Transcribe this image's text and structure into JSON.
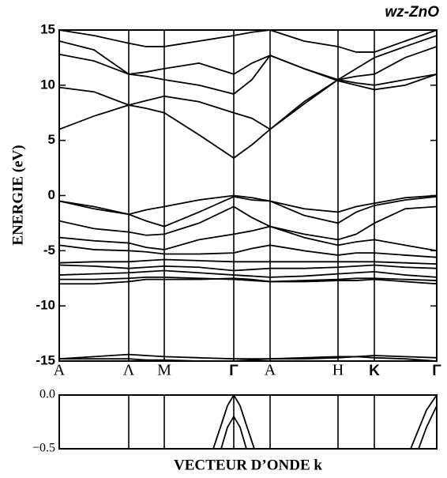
{
  "chart_data": [
    {
      "type": "line",
      "title": "wz-ZnO",
      "ylabel": "ENERGIE (eV)",
      "x": [
        0,
        0.44,
        0.88,
        1.1,
        1.33,
        1.77,
        2.21,
        2.44,
        2.67,
        3.1,
        3.53,
        3.76,
        3.99,
        4.38,
        4.78
      ],
      "xlim": [
        0,
        4.78
      ],
      "xticks": [
        {
          "value": 0,
          "label": "A"
        },
        {
          "value": 0.88,
          "label": "Λ"
        },
        {
          "value": 1.33,
          "label": "M"
        },
        {
          "value": 2.21,
          "label": "Γ"
        },
        {
          "value": 2.67,
          "label": "A"
        },
        {
          "value": 3.53,
          "label": "H"
        },
        {
          "value": 3.99,
          "label": "K"
        },
        {
          "value": 4.78,
          "label": "Γ"
        }
      ],
      "ylim": [
        -15,
        15
      ],
      "yticks": [
        -15,
        -10,
        -5,
        0,
        5,
        10,
        15
      ],
      "series": [
        {
          "color": "#000000",
          "values": [
            -0.5,
            -1.0,
            -1.7,
            -1.3,
            -1.0,
            -0.4,
            0,
            -0.2,
            -0.5,
            -1.2,
            -1.5,
            -1.0,
            -0.7,
            -0.2,
            0
          ]
        },
        {
          "color": "#000000",
          "values": [
            -0.5,
            -1.2,
            -1.7,
            -2.3,
            -2.8,
            -1.5,
            -0.1,
            -0.4,
            -0.5,
            -1.8,
            -2.5,
            -1.5,
            -0.9,
            -0.4,
            -0.1
          ]
        },
        {
          "color": "#000000",
          "values": [
            -2.3,
            -3.0,
            -3.3,
            -3.6,
            -3.5,
            -2.5,
            -1.0,
            -2.0,
            -2.8,
            -3.5,
            -4.0,
            -3.5,
            -2.5,
            -1.2,
            -1.0
          ]
        },
        {
          "color": "#000000",
          "values": [
            -3.8,
            -4.1,
            -4.3,
            -4.7,
            -4.9,
            -4.0,
            -3.5,
            -3.2,
            -2.8,
            -3.8,
            -4.5,
            -4.2,
            -4.0,
            -4.5,
            -5.0
          ]
        },
        {
          "color": "#000000",
          "values": [
            -4.5,
            -4.9,
            -5.0,
            -5.1,
            -5.3,
            -5.3,
            -5.2,
            -4.8,
            -4.5,
            -5.0,
            -5.4,
            -5.2,
            -5.2,
            -5.4,
            -5.6
          ]
        },
        {
          "color": "#000000",
          "values": [
            -6.1,
            -6.0,
            -6.0,
            -5.9,
            -5.8,
            -5.9,
            -6.0,
            -6.0,
            -6.0,
            -6.0,
            -6.0,
            -6.0,
            -6.0,
            -6.1,
            -6.2
          ]
        },
        {
          "color": "#000000",
          "values": [
            -6.3,
            -6.4,
            -6.6,
            -6.5,
            -6.4,
            -6.5,
            -6.8,
            -6.7,
            -6.6,
            -6.6,
            -6.5,
            -6.4,
            -6.3,
            -6.5,
            -6.6
          ]
        },
        {
          "color": "#000000",
          "values": [
            -7.2,
            -7.1,
            -7.0,
            -6.9,
            -6.8,
            -7.0,
            -7.2,
            -7.3,
            -7.4,
            -7.3,
            -7.1,
            -7.0,
            -6.9,
            -7.2,
            -7.4
          ]
        },
        {
          "color": "#000000",
          "values": [
            -7.6,
            -7.6,
            -7.5,
            -7.4,
            -7.4,
            -7.5,
            -7.6,
            -7.7,
            -7.8,
            -7.7,
            -7.6,
            -7.5,
            -7.5,
            -7.6,
            -7.7
          ]
        },
        {
          "color": "#000000",
          "values": [
            -8.0,
            -8.0,
            -7.8,
            -7.6,
            -7.6,
            -7.6,
            -7.5,
            -7.6,
            -7.8,
            -7.8,
            -7.7,
            -7.7,
            -7.6,
            -7.8,
            -8.0
          ]
        },
        {
          "color": "#000000",
          "values": [
            -14.8,
            -14.6,
            -14.4,
            -14.5,
            -14.6,
            -14.7,
            -14.8,
            -14.8,
            -14.8,
            -14.7,
            -14.6,
            -14.6,
            -14.5,
            -14.6,
            -14.7
          ]
        },
        {
          "color": "#000000",
          "values": [
            -14.8,
            -14.8,
            -14.8,
            -14.9,
            -14.9,
            -15.0,
            -15.0,
            -14.9,
            -14.8,
            -14.8,
            -14.7,
            -14.6,
            -14.7,
            -14.8,
            -15.0
          ]
        },
        {
          "color": "#000000",
          "values": [
            6.0,
            7.2,
            8.2,
            7.9,
            7.5,
            5.5,
            3.4,
            4.6,
            6.0,
            8.3,
            10.5,
            10.2,
            10.0,
            10.5,
            11.0
          ]
        },
        {
          "color": "#000000",
          "values": [
            9.8,
            9.4,
            8.2,
            8.6,
            9.0,
            8.5,
            7.5,
            7.0,
            6.0,
            8.5,
            10.5,
            10.8,
            11.0,
            12.5,
            13.5
          ]
        },
        {
          "color": "#000000",
          "values": [
            12.8,
            12.2,
            11.0,
            10.8,
            10.5,
            10.0,
            9.2,
            10.5,
            12.7,
            11.5,
            10.4,
            10.0,
            9.6,
            10.0,
            11.0
          ]
        },
        {
          "color": "#000000",
          "values": [
            14.0,
            13.2,
            11.0,
            11.2,
            11.5,
            12.0,
            11.0,
            12.0,
            12.7,
            11.5,
            10.5,
            11.5,
            12.5,
            13.5,
            14.5
          ]
        },
        {
          "color": "#000000",
          "values": [
            15.0,
            14.5,
            13.8,
            13.5,
            13.5,
            14.0,
            14.5,
            14.8,
            15.0,
            14.0,
            13.5,
            13.0,
            13.0,
            14.0,
            15.0
          ]
        }
      ]
    },
    {
      "type": "line",
      "xlabel": "VECTEUR D’ONDE k",
      "x": [
        1.95,
        2.05,
        2.13,
        2.21,
        2.29,
        2.37,
        2.47,
        4.45,
        4.55,
        4.65,
        4.78
      ],
      "xlim": [
        0,
        4.78
      ],
      "ylim": [
        -0.5,
        0
      ],
      "yticks": [
        {
          "value": -0.5,
          "label": "−0.5"
        },
        {
          "value": 0,
          "label": "0.0"
        }
      ],
      "series": [
        {
          "color": "#000000",
          "values": [
            -0.5,
            -0.28,
            -0.1,
            0,
            -0.1,
            -0.28,
            -0.5,
            null,
            null,
            null,
            null
          ]
        },
        {
          "color": "#000000",
          "values": [
            null,
            -0.5,
            -0.3,
            -0.2,
            -0.3,
            -0.5,
            null,
            null,
            null,
            null,
            null
          ]
        },
        {
          "color": "#000000",
          "values": [
            null,
            null,
            null,
            null,
            null,
            null,
            null,
            -0.5,
            -0.32,
            -0.14,
            0
          ]
        },
        {
          "color": "#000000",
          "values": [
            null,
            null,
            null,
            null,
            null,
            null,
            null,
            null,
            -0.5,
            -0.3,
            -0.1
          ]
        }
      ]
    }
  ]
}
